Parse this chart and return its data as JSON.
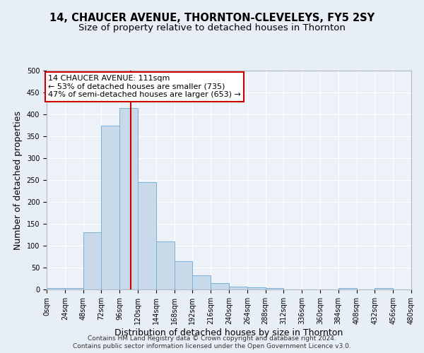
{
  "title": "14, CHAUCER AVENUE, THORNTON-CLEVELEYS, FY5 2SY",
  "subtitle": "Size of property relative to detached houses in Thornton",
  "xlabel": "Distribution of detached houses by size in Thornton",
  "ylabel": "Number of detached properties",
  "bin_edges": [
    0,
    24,
    48,
    72,
    96,
    120,
    144,
    168,
    192,
    216,
    240,
    264,
    288,
    312,
    336,
    360,
    384,
    408,
    432,
    456,
    480
  ],
  "bar_heights": [
    3,
    3,
    130,
    375,
    415,
    245,
    110,
    65,
    33,
    15,
    7,
    5,
    3,
    0,
    0,
    0,
    3,
    0,
    3,
    0
  ],
  "bar_color": "#c8d9ea",
  "bar_edge_color": "#7aafd4",
  "vline_x": 111,
  "vline_color": "#cc0000",
  "annotation_text": "14 CHAUCER AVENUE: 111sqm\n← 53% of detached houses are smaller (735)\n47% of semi-detached houses are larger (653) →",
  "annotation_box_color": "#ffffff",
  "annotation_box_edge": "#cc0000",
  "ylim": [
    0,
    500
  ],
  "xlim": [
    0,
    480
  ],
  "tick_labels": [
    "0sqm",
    "24sqm",
    "48sqm",
    "72sqm",
    "96sqm",
    "120sqm",
    "144sqm",
    "168sqm",
    "192sqm",
    "216sqm",
    "240sqm",
    "264sqm",
    "288sqm",
    "312sqm",
    "336sqm",
    "360sqm",
    "384sqm",
    "408sqm",
    "432sqm",
    "456sqm",
    "480sqm"
  ],
  "footer1": "Contains HM Land Registry data © Crown copyright and database right 2024.",
  "footer2": "Contains public sector information licensed under the Open Government Licence v3.0.",
  "bg_color": "#e8eef5",
  "plot_bg_color": "#edf2f8",
  "grid_color": "#ffffff",
  "title_fontsize": 10.5,
  "subtitle_fontsize": 9.5,
  "axis_label_fontsize": 9,
  "tick_fontsize": 7,
  "footer_fontsize": 6.5,
  "yticks": [
    0,
    50,
    100,
    150,
    200,
    250,
    300,
    350,
    400,
    450,
    500
  ]
}
